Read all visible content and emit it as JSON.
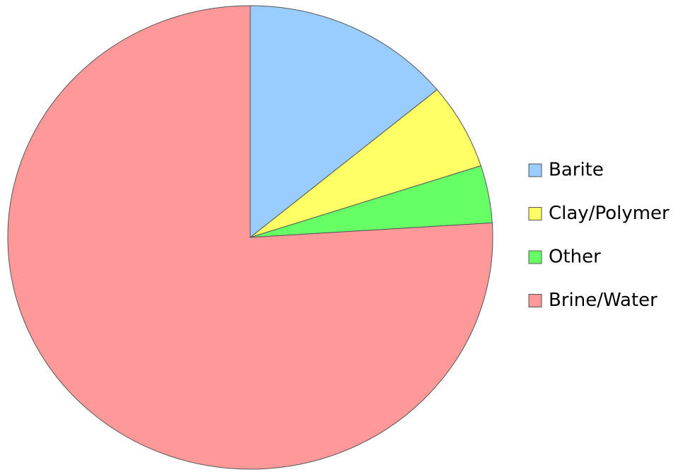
{
  "chart_data": {
    "type": "pie",
    "categories": [
      "Barite",
      "Clay/Polymer",
      "Other",
      "Brine/Water"
    ],
    "values": [
      14,
      6,
      4,
      76
    ],
    "colors": [
      "#99ccff",
      "#ffff66",
      "#66ff66",
      "#ff9999"
    ],
    "legend": "right"
  }
}
